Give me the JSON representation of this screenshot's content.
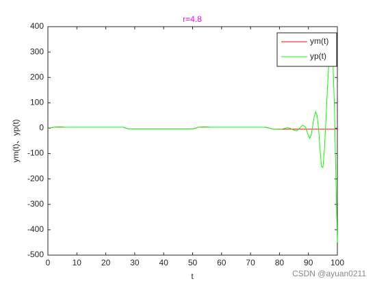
{
  "chart_data": {
    "type": "line",
    "title": "r=4.8",
    "title_color": "#ff00ff",
    "xlabel": "t",
    "ylabel": "ym(t)、yp(t)",
    "x": [
      0,
      2,
      4,
      6,
      8,
      10,
      12,
      14,
      16,
      18,
      20,
      22,
      24,
      26,
      27,
      28,
      30,
      32,
      34,
      36,
      38,
      40,
      42,
      44,
      46,
      48,
      50,
      51,
      52,
      54,
      56,
      58,
      60,
      62,
      64,
      66,
      68,
      70,
      72,
      74,
      75,
      76,
      77,
      78,
      80,
      81,
      82,
      83,
      84,
      85,
      86,
      87,
      88,
      89,
      90,
      90.5,
      91,
      91.5,
      92,
      92.5,
      93,
      93.5,
      94,
      94.5,
      95,
      95.5,
      96,
      96.5,
      97,
      97.5,
      98,
      98.5,
      99,
      99.5,
      100
    ],
    "series": [
      {
        "name": "ym(t)",
        "color": "#ff0000",
        "values": [
          0,
          4,
          5,
          4,
          4,
          4,
          4,
          4,
          4,
          4,
          4,
          4,
          4,
          4,
          0,
          -3,
          -3,
          -3,
          -3,
          -3,
          -3,
          -3,
          -3,
          -3,
          -3,
          -3,
          -3,
          0,
          4,
          5,
          4,
          4,
          4,
          4,
          4,
          4,
          4,
          4,
          4,
          4,
          4,
          2,
          -1,
          -4,
          -4,
          -4,
          -4,
          -4,
          -4,
          -4,
          -4,
          -4,
          -4,
          -4,
          -4,
          -4,
          -4,
          -4,
          -4,
          -4,
          -4,
          -4,
          -4,
          -4,
          -4,
          -4,
          -4,
          -4,
          -4,
          -4,
          -4,
          -4,
          -4,
          -4,
          -4
        ]
      },
      {
        "name": "yp(t)",
        "color": "#00ff00",
        "values": [
          0,
          4,
          5,
          4,
          4,
          4,
          4,
          4,
          4,
          4,
          4,
          4,
          4,
          4,
          0,
          -3,
          -3,
          -3,
          -3,
          -3,
          -3,
          -3,
          -3,
          -3,
          -3,
          -3,
          -3,
          0,
          4,
          5,
          4,
          4,
          4,
          4,
          4,
          4,
          4,
          4,
          4,
          4,
          4,
          2,
          -1,
          -4,
          -5,
          -3,
          0,
          2,
          -2,
          -8,
          -10,
          0,
          12,
          5,
          -30,
          -40,
          -25,
          10,
          45,
          65,
          50,
          0,
          -80,
          -150,
          -155,
          -90,
          20,
          140,
          250,
          300,
          310,
          250,
          80,
          -200,
          -450
        ]
      }
    ],
    "xlim": [
      0,
      100
    ],
    "xticks": [
      0,
      10,
      20,
      30,
      40,
      50,
      60,
      70,
      80,
      90,
      100
    ],
    "ylim": [
      -500,
      400
    ],
    "yticks": [
      -500,
      -400,
      -300,
      -200,
      -100,
      0,
      100,
      200,
      300,
      400
    ],
    "grid": false,
    "legend": "northeast",
    "watermark": "CSDN @ayuan0211"
  }
}
